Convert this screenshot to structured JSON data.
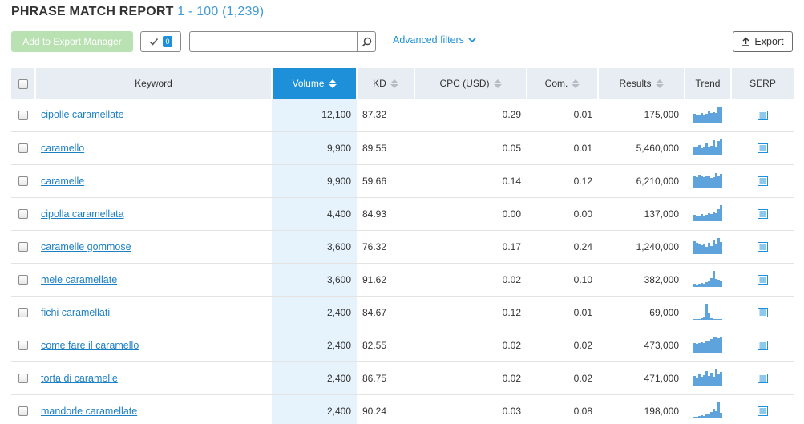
{
  "report": {
    "title": "PHRASE MATCH REPORT",
    "range": "1 - 100 (1,239)"
  },
  "toolbar": {
    "export_manager_label": "Add to Export Manager",
    "selected_count": "0",
    "search_placeholder": "",
    "search_value": "",
    "advanced_filters_label": "Advanced filters",
    "export_label": "Export"
  },
  "colors": {
    "accent": "#1d90d9",
    "header_bg": "#e7edf2",
    "active_col_bg": "#e6f2fc",
    "export_mgr_disabled": "#b9e1b2",
    "trend_bar": "#5ea3dc"
  },
  "table": {
    "columns": [
      "Keyword",
      "Volume",
      "KD",
      "CPC (USD)",
      "Com.",
      "Results",
      "Trend",
      "SERP"
    ],
    "sorted_column": "Volume",
    "rows": [
      {
        "keyword": "cipolle caramellate",
        "volume": "12,100",
        "kd": "87.32",
        "cpc": "0.29",
        "com": "0.01",
        "results": "175,000",
        "trend": [
          0.55,
          0.45,
          0.5,
          0.6,
          0.5,
          0.55,
          0.7,
          0.6,
          0.65,
          0.6,
          0.95,
          1.0
        ]
      },
      {
        "keyword": "caramello",
        "volume": "9,900",
        "kd": "89.55",
        "cpc": "0.05",
        "com": "0.01",
        "results": "5,460,000",
        "trend": [
          0.55,
          0.5,
          0.65,
          0.45,
          0.55,
          0.8,
          0.5,
          0.6,
          0.95,
          0.55,
          0.9,
          1.0
        ]
      },
      {
        "keyword": "caramelle",
        "volume": "9,900",
        "kd": "59.66",
        "cpc": "0.14",
        "com": "0.12",
        "results": "6,210,000",
        "trend": [
          0.75,
          0.7,
          0.85,
          0.8,
          0.7,
          0.75,
          0.8,
          0.65,
          0.7,
          0.95,
          0.75,
          0.9
        ]
      },
      {
        "keyword": "cipolla caramellata",
        "volume": "4,400",
        "kd": "84.93",
        "cpc": "0.00",
        "com": "0.00",
        "results": "137,000",
        "trend": [
          0.4,
          0.3,
          0.35,
          0.45,
          0.35,
          0.4,
          0.5,
          0.45,
          0.55,
          0.5,
          0.75,
          1.0
        ]
      },
      {
        "keyword": "caramelle gommose",
        "volume": "3,600",
        "kd": "76.32",
        "cpc": "0.17",
        "com": "0.24",
        "results": "1,240,000",
        "trend": [
          0.8,
          0.7,
          0.6,
          0.55,
          0.65,
          0.45,
          0.7,
          0.5,
          0.85,
          0.6,
          1.0,
          0.75
        ]
      },
      {
        "keyword": "mele caramellate",
        "volume": "3,600",
        "kd": "91.62",
        "cpc": "0.02",
        "com": "0.10",
        "results": "382,000",
        "trend": [
          0.2,
          0.15,
          0.2,
          0.25,
          0.2,
          0.3,
          0.4,
          0.55,
          1.0,
          0.5,
          0.45,
          0.4
        ]
      },
      {
        "keyword": "fichi caramellati",
        "volume": "2,400",
        "kd": "84.67",
        "cpc": "0.12",
        "com": "0.01",
        "results": "69,000",
        "trend": [
          0.05,
          0.05,
          0.05,
          0.1,
          0.2,
          1.0,
          0.45,
          0.1,
          0.05,
          0.05,
          0.05,
          0.05
        ]
      },
      {
        "keyword": "come fare il caramello",
        "volume": "2,400",
        "kd": "82.55",
        "cpc": "0.02",
        "com": "0.02",
        "results": "473,000",
        "trend": [
          0.6,
          0.55,
          0.6,
          0.65,
          0.6,
          0.7,
          0.75,
          0.85,
          1.0,
          0.95,
          0.9,
          0.95
        ]
      },
      {
        "keyword": "torta di caramelle",
        "volume": "2,400",
        "kd": "86.75",
        "cpc": "0.02",
        "com": "0.02",
        "results": "471,000",
        "trend": [
          0.6,
          0.5,
          0.75,
          0.55,
          0.65,
          0.9,
          0.6,
          0.8,
          0.55,
          1.0,
          0.7,
          0.85
        ]
      },
      {
        "keyword": "mandorle caramellate",
        "volume": "2,400",
        "kd": "90.24",
        "cpc": "0.03",
        "com": "0.08",
        "results": "198,000",
        "trend": [
          0.1,
          0.1,
          0.15,
          0.2,
          0.15,
          0.25,
          0.3,
          0.4,
          0.6,
          0.45,
          1.0,
          0.35
        ]
      }
    ]
  }
}
